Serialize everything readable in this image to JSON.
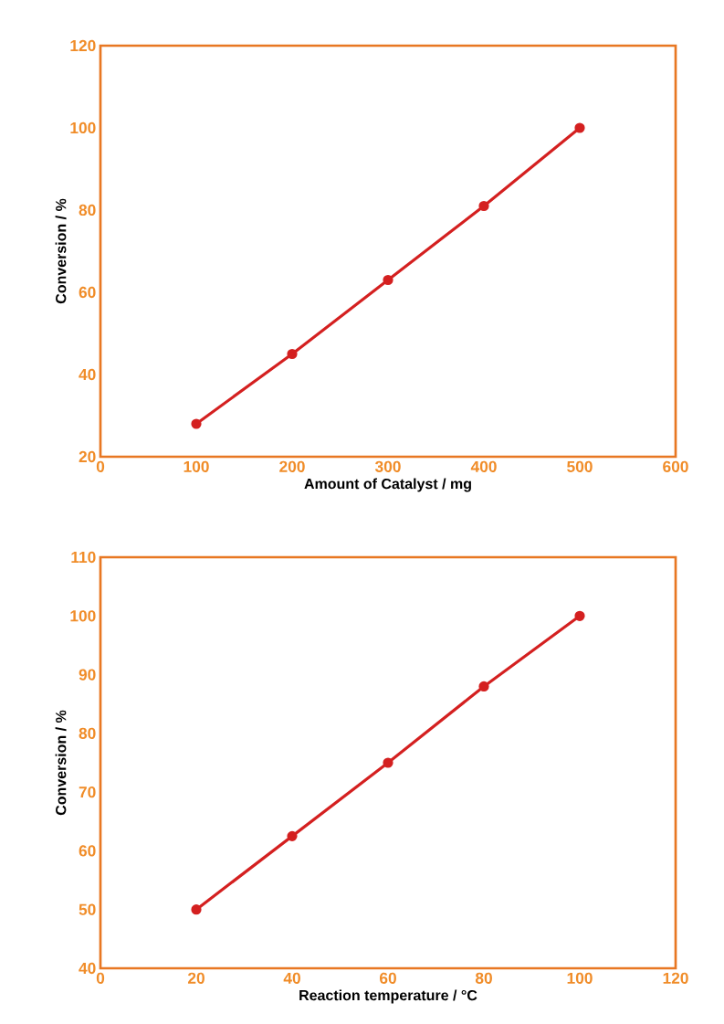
{
  "chart_data": [
    {
      "type": "line",
      "xlabel": "Amount of Catalyst / mg",
      "ylabel": "Conversion / %",
      "x": [
        100,
        200,
        300,
        400,
        500
      ],
      "series": [
        {
          "color": "#d42020",
          "values": [
            28,
            45,
            63,
            81,
            100
          ]
        }
      ],
      "xlim": [
        0,
        600
      ],
      "ylim": [
        20,
        120
      ],
      "xticks": [
        0,
        100,
        200,
        300,
        400,
        500,
        600
      ],
      "yticks": [
        20,
        40,
        60,
        80,
        100,
        120
      ],
      "marker": "circle",
      "line_style": "solid"
    },
    {
      "type": "line",
      "xlabel": "Reaction temperature / °C",
      "ylabel": "Conversion / %",
      "x": [
        20,
        40,
        60,
        80,
        100
      ],
      "series": [
        {
          "color": "#d42020",
          "values": [
            50,
            62.5,
            75,
            88,
            100
          ]
        }
      ],
      "xlim": [
        0,
        120
      ],
      "ylim": [
        40,
        110
      ],
      "xticks": [
        0,
        20,
        40,
        60,
        80,
        100,
        120
      ],
      "yticks": [
        40,
        50,
        60,
        70,
        80,
        90,
        100,
        110
      ],
      "marker": "circle",
      "line_style": "solid"
    }
  ]
}
